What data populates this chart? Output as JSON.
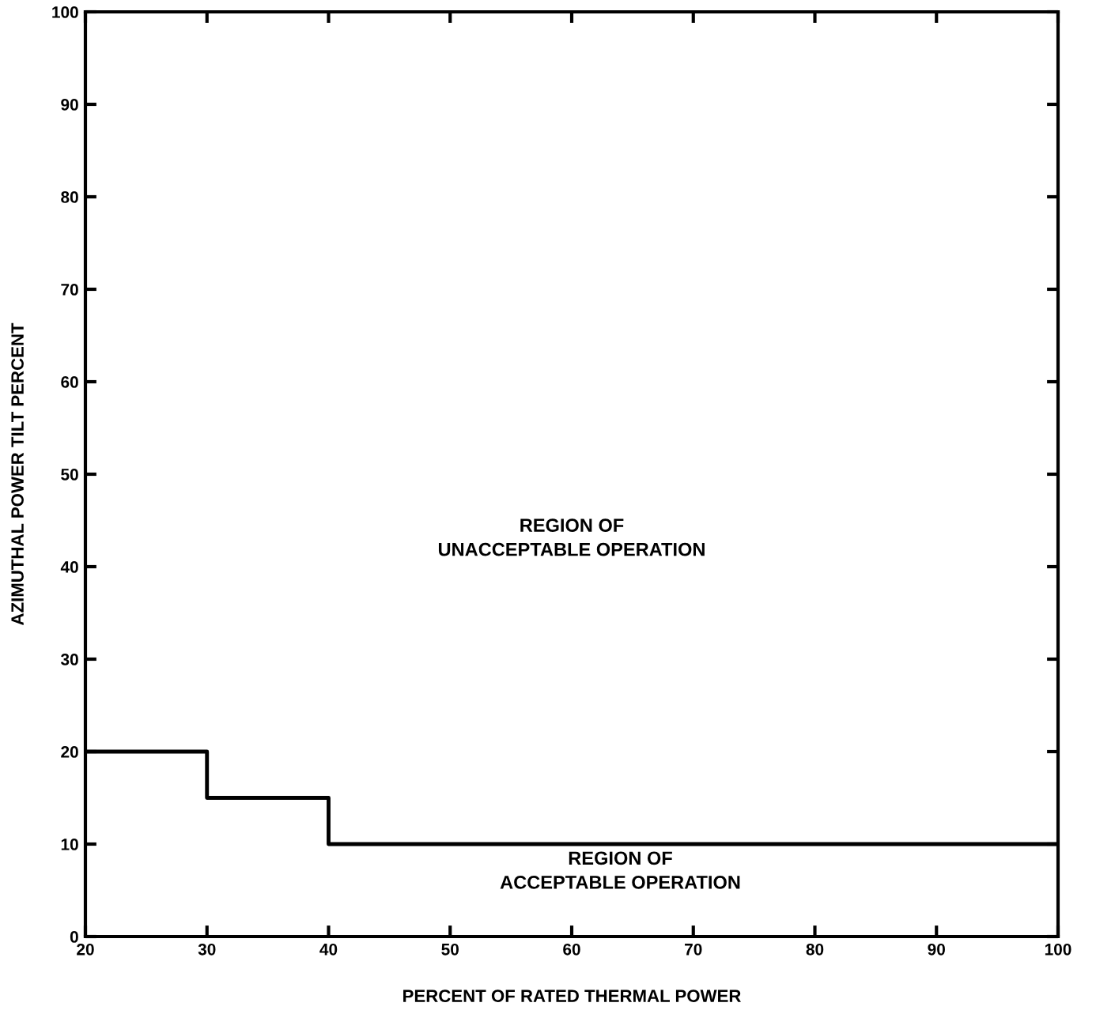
{
  "chart_data": {
    "type": "step",
    "xlabel": "PERCENT OF RATED THERMAL POWER",
    "ylabel": "AZIMUTHAL POWER TILT PERCENT",
    "x": [
      20,
      30,
      40,
      100
    ],
    "values": [
      20,
      15,
      10,
      10
    ],
    "color": "#000000",
    "xlim": [
      20,
      100
    ],
    "xticks": [
      20,
      30,
      40,
      50,
      60,
      70,
      80,
      90,
      100
    ],
    "ylim": [
      0,
      100
    ],
    "yticks": [
      0,
      10,
      20,
      30,
      40,
      50,
      60,
      70,
      80,
      90,
      100
    ],
    "grid": false,
    "annotations": [
      "REGION OF\nUNACCEPTABLE OPERATION",
      "REGION OF\nACCEPTABLE OPERATION"
    ]
  }
}
